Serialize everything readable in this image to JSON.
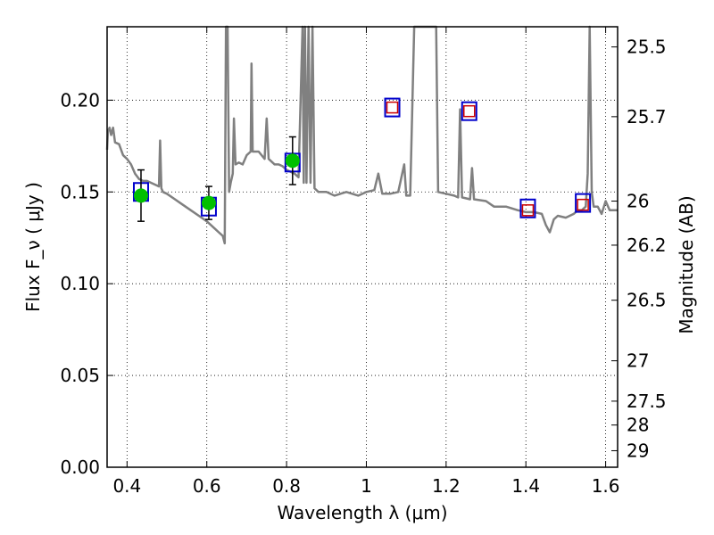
{
  "chart_data": {
    "type": "scatter",
    "xlabel": "Wavelength  λ (μm)",
    "ylabel": "Flux  F_ν  ( μJy )",
    "ylabel_right": "Magnitude (AB)",
    "xlim": [
      0.35,
      1.63
    ],
    "ylim": [
      0.0,
      0.24
    ],
    "grid": true,
    "x_ticks": [
      0.4,
      0.6,
      0.8,
      1.0,
      1.2,
      1.4,
      1.6
    ],
    "x_tick_labels": [
      "0.4",
      "0.6",
      "0.8",
      "1",
      "1.2",
      "1.4",
      "1.6"
    ],
    "y_ticks": [
      0.0,
      0.05,
      0.1,
      0.15,
      0.2
    ],
    "y_tick_labels": [
      "0.00",
      "0.05",
      "0.10",
      "0.15",
      "0.20"
    ],
    "right_ticks": [
      {
        "flux": 0.229,
        "label": "25.5"
      },
      {
        "flux": 0.191,
        "label": "25.7"
      },
      {
        "flux": 0.145,
        "label": "26"
      },
      {
        "flux": 0.121,
        "label": "26.2"
      },
      {
        "flux": 0.091,
        "label": "26.5"
      },
      {
        "flux": 0.058,
        "label": "27"
      },
      {
        "flux": 0.036,
        "label": "27.5"
      },
      {
        "flux": 0.023,
        "label": "28"
      },
      {
        "flux": 0.009,
        "label": "29"
      }
    ],
    "model_spectrum": {
      "color": "#808080",
      "points": [
        [
          0.35,
          0.173
        ],
        [
          0.352,
          0.183
        ],
        [
          0.356,
          0.185
        ],
        [
          0.36,
          0.181
        ],
        [
          0.365,
          0.185
        ],
        [
          0.37,
          0.177
        ],
        [
          0.38,
          0.176
        ],
        [
          0.39,
          0.17
        ],
        [
          0.4,
          0.168
        ],
        [
          0.41,
          0.165
        ],
        [
          0.42,
          0.16
        ],
        [
          0.43,
          0.157
        ],
        [
          0.44,
          0.156
        ],
        [
          0.45,
          0.156
        ],
        [
          0.46,
          0.155
        ],
        [
          0.47,
          0.154
        ],
        [
          0.48,
          0.153
        ],
        [
          0.483,
          0.178
        ],
        [
          0.486,
          0.152
        ],
        [
          0.49,
          0.15
        ],
        [
          0.5,
          0.149
        ],
        [
          0.52,
          0.146
        ],
        [
          0.54,
          0.143
        ],
        [
          0.56,
          0.14
        ],
        [
          0.58,
          0.137
        ],
        [
          0.6,
          0.134
        ],
        [
          0.62,
          0.13
        ],
        [
          0.63,
          0.128
        ],
        [
          0.64,
          0.126
        ],
        [
          0.645,
          0.122
        ],
        [
          0.648,
          0.24
        ],
        [
          0.652,
          0.24
        ],
        [
          0.656,
          0.15
        ],
        [
          0.66,
          0.155
        ],
        [
          0.665,
          0.16
        ],
        [
          0.668,
          0.19
        ],
        [
          0.672,
          0.165
        ],
        [
          0.68,
          0.166
        ],
        [
          0.69,
          0.165
        ],
        [
          0.7,
          0.17
        ],
        [
          0.71,
          0.172
        ],
        [
          0.712,
          0.22
        ],
        [
          0.715,
          0.172
        ],
        [
          0.73,
          0.172
        ],
        [
          0.745,
          0.168
        ],
        [
          0.75,
          0.19
        ],
        [
          0.755,
          0.168
        ],
        [
          0.77,
          0.165
        ],
        [
          0.78,
          0.165
        ],
        [
          0.79,
          0.164
        ],
        [
          0.8,
          0.162
        ],
        [
          0.82,
          0.16
        ],
        [
          0.83,
          0.158
        ],
        [
          0.84,
          0.24
        ],
        [
          0.843,
          0.155
        ],
        [
          0.846,
          0.24
        ],
        [
          0.85,
          0.155
        ],
        [
          0.855,
          0.24
        ],
        [
          0.86,
          0.155
        ],
        [
          0.865,
          0.24
        ],
        [
          0.87,
          0.152
        ],
        [
          0.88,
          0.15
        ],
        [
          0.9,
          0.15
        ],
        [
          0.92,
          0.148
        ],
        [
          0.95,
          0.15
        ],
        [
          0.98,
          0.148
        ],
        [
          1.0,
          0.15
        ],
        [
          1.02,
          0.151
        ],
        [
          1.03,
          0.16
        ],
        [
          1.04,
          0.149
        ],
        [
          1.06,
          0.149
        ],
        [
          1.08,
          0.15
        ],
        [
          1.095,
          0.165
        ],
        [
          1.1,
          0.148
        ],
        [
          1.11,
          0.148
        ],
        [
          1.12,
          0.24
        ],
        [
          1.175,
          0.24
        ],
        [
          1.18,
          0.15
        ],
        [
          1.2,
          0.149
        ],
        [
          1.22,
          0.148
        ],
        [
          1.23,
          0.147
        ],
        [
          1.235,
          0.195
        ],
        [
          1.24,
          0.147
        ],
        [
          1.26,
          0.146
        ],
        [
          1.265,
          0.163
        ],
        [
          1.27,
          0.146
        ],
        [
          1.3,
          0.145
        ],
        [
          1.32,
          0.142
        ],
        [
          1.35,
          0.142
        ],
        [
          1.38,
          0.14
        ],
        [
          1.4,
          0.139
        ],
        [
          1.42,
          0.139
        ],
        [
          1.44,
          0.138
        ],
        [
          1.45,
          0.132
        ],
        [
          1.46,
          0.128
        ],
        [
          1.47,
          0.135
        ],
        [
          1.48,
          0.137
        ],
        [
          1.5,
          0.136
        ],
        [
          1.52,
          0.138
        ],
        [
          1.53,
          0.14
        ],
        [
          1.54,
          0.14
        ],
        [
          1.55,
          0.142
        ],
        [
          1.555,
          0.16
        ],
        [
          1.56,
          0.24
        ],
        [
          1.565,
          0.15
        ],
        [
          1.57,
          0.142
        ],
        [
          1.58,
          0.142
        ],
        [
          1.59,
          0.138
        ],
        [
          1.6,
          0.145
        ],
        [
          1.61,
          0.14
        ],
        [
          1.63,
          0.14
        ]
      ]
    },
    "observed": {
      "color": "#00c000",
      "points": [
        {
          "x": 0.435,
          "y": 0.148,
          "err": 0.014
        },
        {
          "x": 0.605,
          "y": 0.144,
          "err": 0.009
        },
        {
          "x": 0.815,
          "y": 0.167,
          "err": 0.013
        }
      ]
    },
    "model_photometry": {
      "color": "#0000cc",
      "points": [
        {
          "x": 0.435,
          "y": 0.15
        },
        {
          "x": 0.605,
          "y": 0.142
        },
        {
          "x": 0.815,
          "y": 0.166
        },
        {
          "x": 1.065,
          "y": 0.196
        },
        {
          "x": 1.258,
          "y": 0.194
        },
        {
          "x": 1.405,
          "y": 0.141
        },
        {
          "x": 1.543,
          "y": 0.144
        }
      ]
    },
    "predicted": {
      "color": "#cc0000",
      "points": [
        {
          "x": 1.065,
          "y": 0.196
        },
        {
          "x": 1.258,
          "y": 0.194
        },
        {
          "x": 1.405,
          "y": 0.14
        },
        {
          "x": 1.543,
          "y": 0.143
        }
      ]
    }
  }
}
